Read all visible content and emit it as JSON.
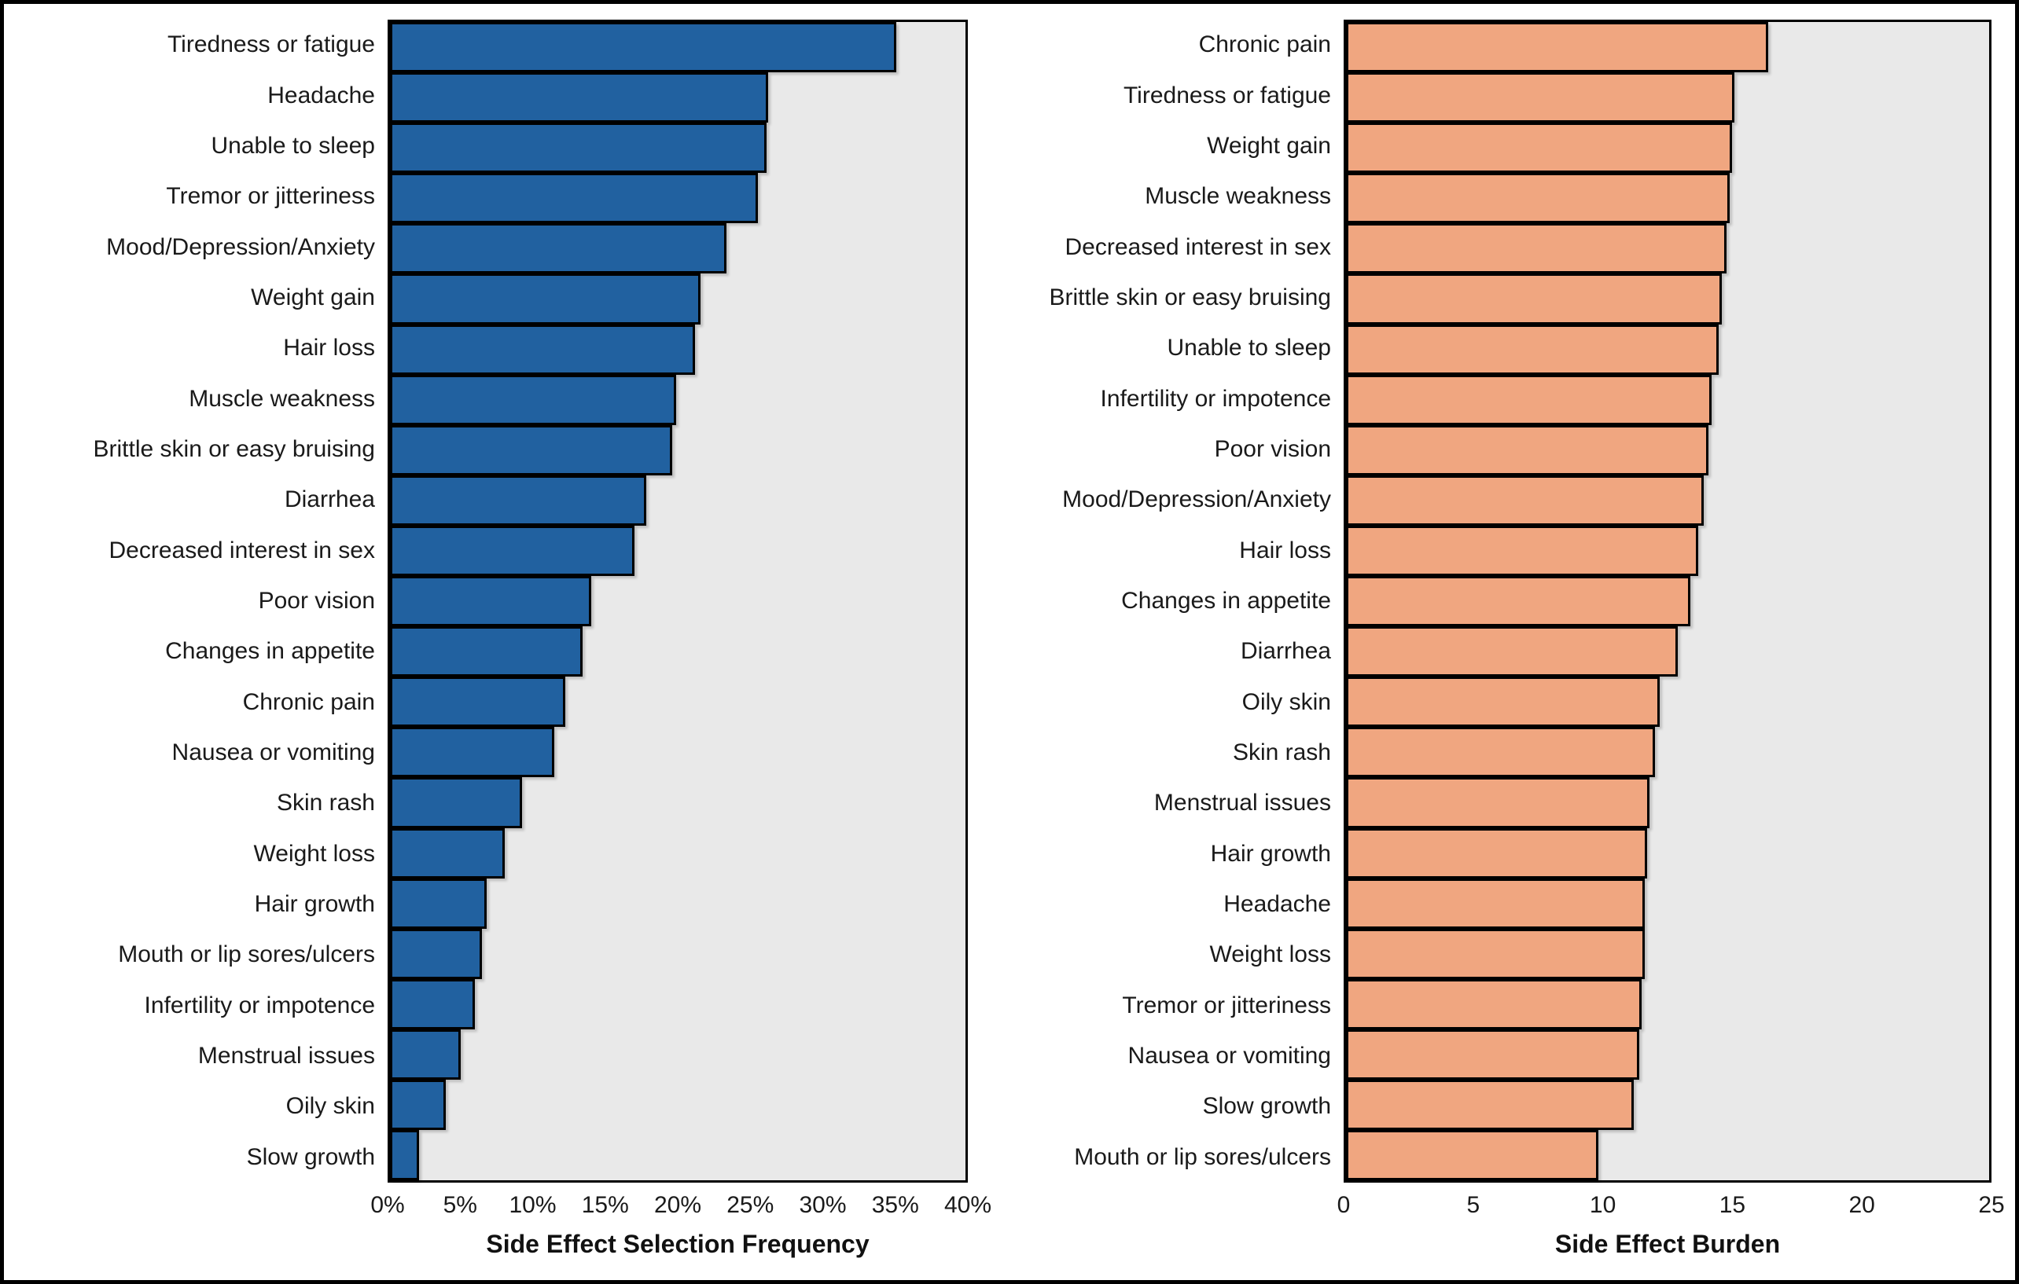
{
  "figure": {
    "background": "#ffffff",
    "border_color": "#000000",
    "text_color": "#1a1a1a"
  },
  "chart_data": [
    {
      "type": "bar",
      "orientation": "horizontal",
      "title": "",
      "xlabel": "Side Effect Selection Frequency",
      "ylabel": "",
      "xlim": [
        0,
        40
      ],
      "xticks": [
        "0%",
        "5%",
        "10%",
        "15%",
        "20%",
        "25%",
        "30%",
        "35%",
        "40%"
      ],
      "grid": false,
      "legend": false,
      "plot_bg": "#e9e9e9",
      "bar_color": "#2161a0",
      "bar_border_color": "#000000",
      "categories": [
        "Tiredness or fatigue",
        "Headache",
        "Unable to sleep",
        "Tremor or jitteriness",
        "Mood/Depression/Anxiety",
        "Weight gain",
        "Hair loss",
        "Muscle weakness",
        "Brittle skin or easy bruising",
        "Diarrhea",
        "Decreased interest in sex",
        "Poor vision",
        "Changes in appetite",
        "Chronic pain",
        "Nausea or vomiting",
        "Skin rash",
        "Weight loss",
        "Hair growth",
        "Mouth or lip sores/ulcers",
        "Infertility or impotence",
        "Menstrual issues",
        "Oily skin",
        "Slow growth"
      ],
      "values": [
        35.2,
        26.3,
        26.2,
        25.6,
        23.4,
        21.6,
        21.2,
        19.9,
        19.6,
        17.8,
        17.0,
        14.0,
        13.4,
        12.2,
        11.4,
        9.2,
        8.0,
        6.7,
        6.4,
        5.9,
        4.9,
        3.9,
        2.0
      ]
    },
    {
      "type": "bar",
      "orientation": "horizontal",
      "title": "",
      "xlabel": "Side Effect Burden",
      "ylabel": "",
      "xlim": [
        0,
        25
      ],
      "xticks": [
        "0",
        "5",
        "10",
        "15",
        "20",
        "25"
      ],
      "grid": false,
      "legend": false,
      "plot_bg": "#e9e9e9",
      "bar_color": "#f0a680",
      "bar_border_color": "#000000",
      "categories": [
        "Chronic pain",
        "Tiredness or fatigue",
        "Weight gain",
        "Muscle weakness",
        "Decreased interest in sex",
        "Brittle skin or easy bruising",
        "Unable to sleep",
        "Infertility or impotence",
        "Poor vision",
        "Mood/Depression/Anxiety",
        "Hair loss",
        "Changes in appetite",
        "Diarrhea",
        "Oily skin",
        "Skin rash",
        "Menstrual issues",
        "Hair growth",
        "Headache",
        "Weight loss",
        "Tremor or jitteriness",
        "Nausea or vomiting",
        "Slow growth",
        "Mouth or lip sores/ulcers"
      ],
      "values": [
        16.4,
        15.1,
        15.0,
        14.9,
        14.8,
        14.6,
        14.5,
        14.2,
        14.1,
        13.9,
        13.7,
        13.4,
        12.9,
        12.2,
        12.0,
        11.8,
        11.7,
        11.6,
        11.6,
        11.5,
        11.4,
        11.2,
        9.8
      ]
    }
  ]
}
